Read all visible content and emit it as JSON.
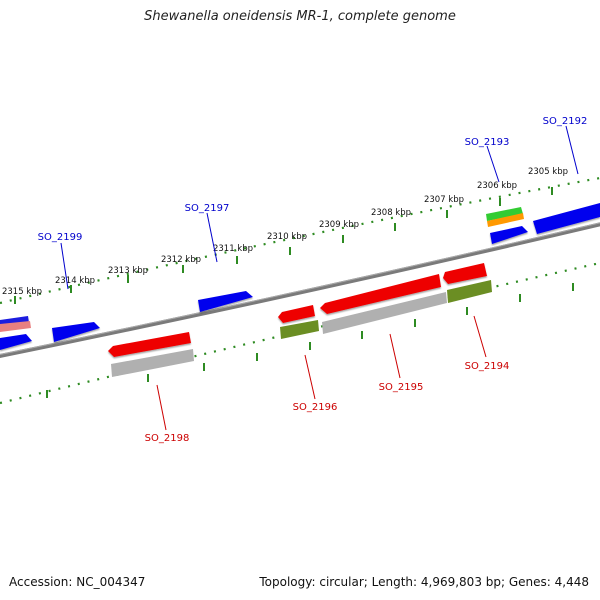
{
  "title": "Shewanella oneidensis MR-1, complete genome",
  "footer": {
    "accession": "Accession: NC_004347",
    "stats": "Topology: circular; Length: 4,969,803 bp; Genes: 4,448"
  },
  "ruler_labels": [
    "2305 kbp",
    "2306 kbp",
    "2307 kbp",
    "2308 kbp",
    "2309 kbp",
    "2310 kbp",
    "2311 kbp",
    "2312 kbp",
    "2313 kbp",
    "2314 kbp",
    "2315 kbp"
  ],
  "gene_labels": {
    "forward": [
      "SO_2192",
      "SO_2193",
      "SO_2197",
      "SO_2199"
    ],
    "reverse": [
      "SO_2194",
      "SO_2195",
      "SO_2196",
      "SO_2198"
    ]
  },
  "colors": {
    "backbone": "#808080",
    "forward_gene": "#0000ee",
    "reverse_gene": "#ee0000",
    "gray_feature": "#b0b0b0",
    "olive_feature": "#6b8e23",
    "green_feature": "#33cc33",
    "orange_feature": "#ff9900",
    "pink_feature": "#e88080",
    "ruler": "#2e8b22",
    "forward_label": "#0000cc",
    "reverse_label": "#cc0000"
  }
}
